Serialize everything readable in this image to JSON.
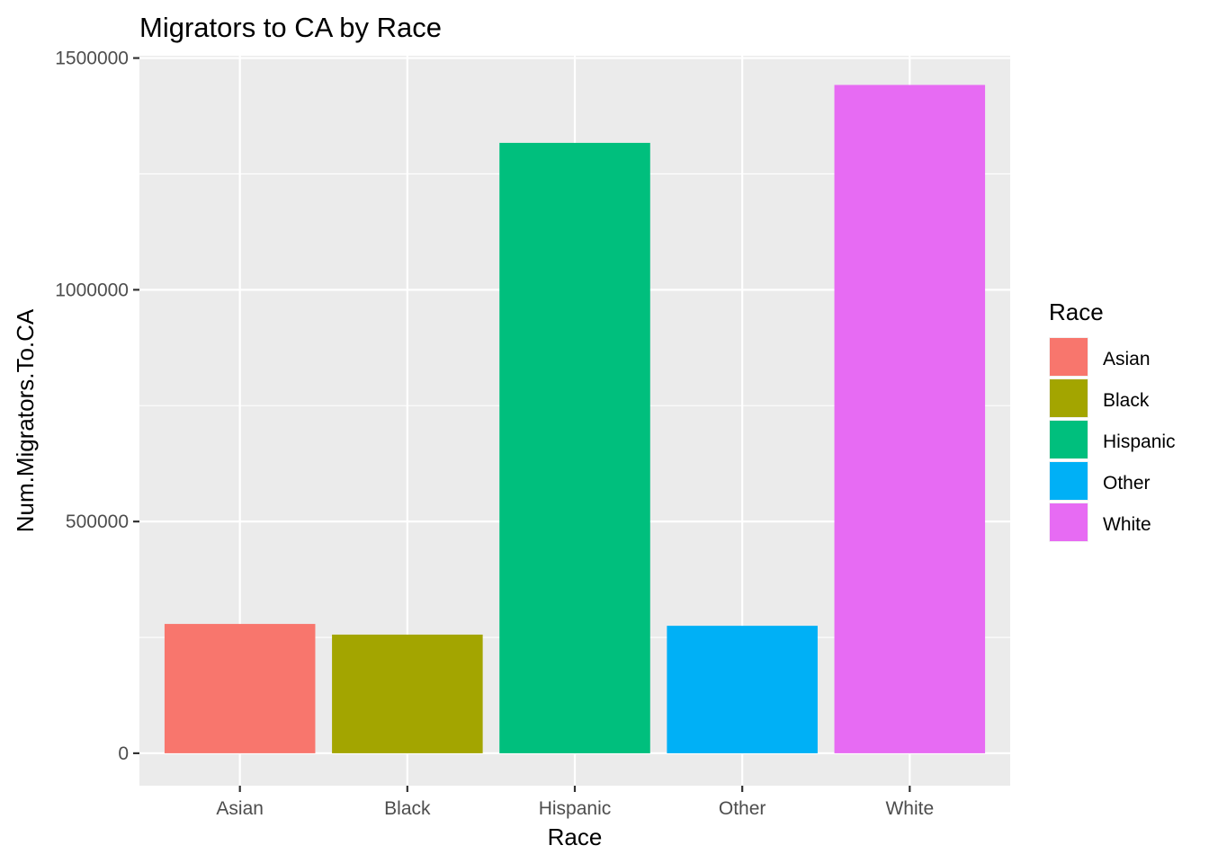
{
  "chart_data": {
    "type": "bar",
    "title": "Migrators to CA by Race",
    "xlabel": "Race",
    "ylabel": "Num.Migrators.To.CA",
    "categories": [
      "Asian",
      "Black",
      "Hispanic",
      "Other",
      "White"
    ],
    "values": [
      279000,
      256000,
      1317000,
      275000,
      1442000
    ],
    "colors": [
      "#F8766D",
      "#A3A500",
      "#00BF7D",
      "#00B0F6",
      "#E76BF3"
    ],
    "ylim": [
      -70000,
      1505000
    ],
    "yticks": [
      0,
      500000,
      1000000,
      1500000
    ],
    "ytick_labels": [
      "0",
      "500000",
      "1000000",
      "1500000"
    ],
    "grid": true,
    "legend": {
      "title": "Race",
      "position": "right",
      "entries": [
        "Asian",
        "Black",
        "Hispanic",
        "Other",
        "White"
      ]
    }
  }
}
